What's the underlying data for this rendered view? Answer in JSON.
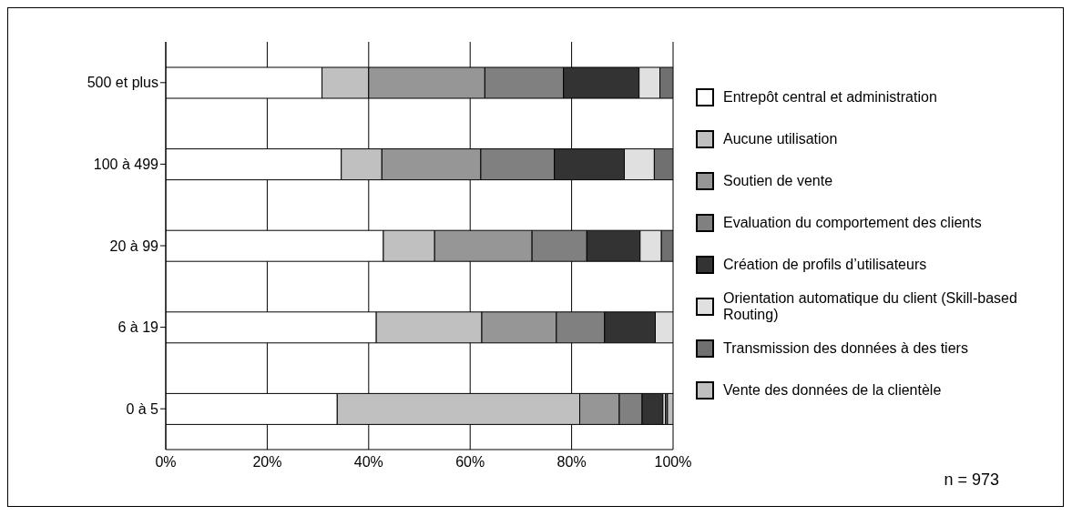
{
  "chart_data": {
    "type": "bar",
    "orientation": "horizontal",
    "stacked": true,
    "categories": [
      "500 et plus",
      "100 à 499",
      "20 à 99",
      "6 à 19",
      "0 à 5"
    ],
    "series": [
      {
        "name": "Entrepôt central et administration",
        "color": "#ffffff",
        "values": [
          30.8,
          34.6,
          42.9,
          41.5,
          33.8
        ]
      },
      {
        "name": "Aucune utilisation",
        "color": "#c0c0c0",
        "values": [
          9.2,
          8.0,
          10.1,
          20.8,
          47.8
        ]
      },
      {
        "name": "Soutien de vente",
        "color": "#969696",
        "values": [
          22.9,
          19.5,
          19.2,
          14.7,
          7.8
        ]
      },
      {
        "name": "Evaluation du comportement des clients",
        "color": "#808080",
        "values": [
          15.5,
          14.5,
          10.8,
          9.5,
          4.5
        ]
      },
      {
        "name": "Création de profils d’utilisateurs",
        "color": "#333333",
        "values": [
          14.9,
          13.8,
          10.5,
          10.0,
          4.1
        ]
      },
      {
        "name": "Orientation automatique du client (Skill-based Routing)",
        "color": "#e0e0e0",
        "values": [
          4.1,
          5.9,
          4.2,
          3.5,
          0.5
        ]
      },
      {
        "name": "Transmission des données à des tiers",
        "color": "#707070",
        "values": [
          2.6,
          3.7,
          2.3,
          0,
          0.4
        ]
      },
      {
        "name": "Vente des données de la clientèle",
        "color": "#c0c0c0",
        "values": [
          0,
          0,
          0,
          0,
          1.1
        ]
      }
    ],
    "xlim": [
      0,
      100
    ],
    "xticks": [
      {
        "value": 0,
        "label": "0%"
      },
      {
        "value": 20,
        "label": "20%"
      },
      {
        "value": 40,
        "label": "40%"
      },
      {
        "value": 60,
        "label": "60%"
      },
      {
        "value": 80,
        "label": "80%"
      },
      {
        "value": 100,
        "label": "100%"
      }
    ],
    "grid": "x",
    "legend": "right",
    "annotations": [
      "n = 973"
    ]
  }
}
